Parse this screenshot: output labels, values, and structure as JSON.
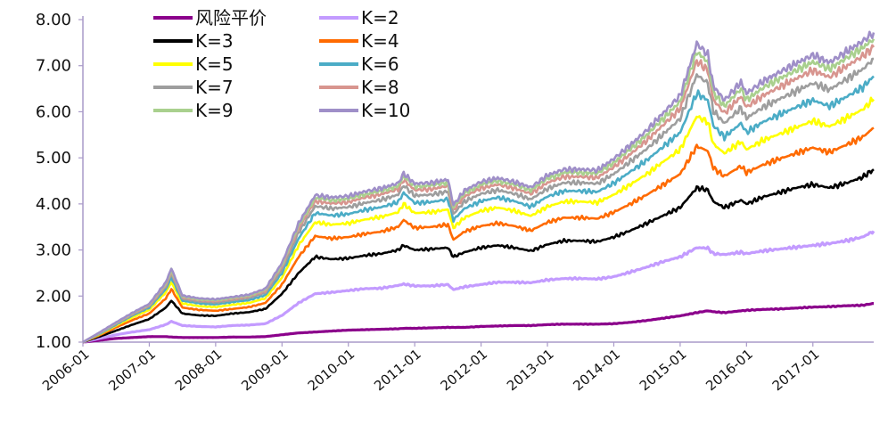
{
  "chart_data": {
    "type": "line",
    "title": "",
    "xlabel": "",
    "ylabel": "",
    "ylim": [
      1.0,
      8.0
    ],
    "y_ticks": [
      "1.00",
      "2.00",
      "3.00",
      "4.00",
      "5.00",
      "6.00",
      "7.00",
      "8.00"
    ],
    "x_ticks": [
      "2006-01",
      "2007-01",
      "2008-01",
      "2009-01",
      "2010-01",
      "2011-01",
      "2012-01",
      "2013-01",
      "2014-01",
      "2015-01",
      "2016-01",
      "2017-01"
    ],
    "x_range": [
      "2006-01",
      "2017-12"
    ],
    "grid": false,
    "legend_position": "top-left",
    "x": [
      "2006-01",
      "2006-04",
      "2006-07",
      "2006-10",
      "2007-01",
      "2007-04",
      "2007-05",
      "2007-07",
      "2007-10",
      "2008-01",
      "2008-04",
      "2008-07",
      "2008-10",
      "2009-01",
      "2009-04",
      "2009-07",
      "2009-10",
      "2010-01",
      "2010-04",
      "2010-07",
      "2010-10",
      "2010-11",
      "2011-01",
      "2011-04",
      "2011-07",
      "2011-08",
      "2011-10",
      "2012-01",
      "2012-04",
      "2012-07",
      "2012-10",
      "2013-01",
      "2013-04",
      "2013-07",
      "2013-10",
      "2014-01",
      "2014-04",
      "2014-07",
      "2014-10",
      "2015-01",
      "2015-04",
      "2015-06",
      "2015-07",
      "2015-09",
      "2015-12",
      "2016-01",
      "2016-04",
      "2016-07",
      "2016-10",
      "2017-01",
      "2017-04",
      "2017-07",
      "2017-10",
      "2017-12"
    ],
    "series": [
      {
        "name": "风险平价",
        "color": "#8b008b",
        "values": [
          1.0,
          1.04,
          1.08,
          1.1,
          1.12,
          1.12,
          1.11,
          1.1,
          1.1,
          1.1,
          1.11,
          1.11,
          1.12,
          1.16,
          1.2,
          1.22,
          1.24,
          1.26,
          1.27,
          1.28,
          1.29,
          1.3,
          1.3,
          1.31,
          1.32,
          1.32,
          1.32,
          1.34,
          1.35,
          1.36,
          1.36,
          1.38,
          1.39,
          1.39,
          1.39,
          1.4,
          1.43,
          1.47,
          1.52,
          1.57,
          1.64,
          1.68,
          1.66,
          1.64,
          1.68,
          1.69,
          1.71,
          1.72,
          1.74,
          1.76,
          1.77,
          1.79,
          1.8,
          1.84
        ]
      },
      {
        "name": "K=2",
        "color": "#c39bff",
        "values": [
          1.0,
          1.08,
          1.16,
          1.22,
          1.27,
          1.38,
          1.45,
          1.36,
          1.34,
          1.33,
          1.36,
          1.37,
          1.4,
          1.58,
          1.85,
          2.05,
          2.08,
          2.12,
          2.16,
          2.17,
          2.23,
          2.26,
          2.22,
          2.22,
          2.25,
          2.14,
          2.2,
          2.25,
          2.3,
          2.3,
          2.29,
          2.35,
          2.38,
          2.38,
          2.37,
          2.42,
          2.52,
          2.63,
          2.75,
          2.85,
          3.05,
          3.04,
          2.92,
          2.9,
          2.95,
          2.92,
          2.98,
          3.02,
          3.06,
          3.1,
          3.14,
          3.2,
          3.28,
          3.41
        ]
      },
      {
        "name": "K=3",
        "color": "#000000",
        "values": [
          1.0,
          1.12,
          1.25,
          1.38,
          1.5,
          1.75,
          1.9,
          1.62,
          1.58,
          1.57,
          1.62,
          1.65,
          1.72,
          2.05,
          2.5,
          2.85,
          2.8,
          2.82,
          2.88,
          2.92,
          3.0,
          3.1,
          3.0,
          3.02,
          3.05,
          2.85,
          2.95,
          3.05,
          3.1,
          3.05,
          2.98,
          3.12,
          3.2,
          3.2,
          3.18,
          3.28,
          3.42,
          3.58,
          3.75,
          3.92,
          4.35,
          4.3,
          4.05,
          3.92,
          4.08,
          4.0,
          4.15,
          4.25,
          4.35,
          4.42,
          4.35,
          4.45,
          4.58,
          4.75
        ]
      },
      {
        "name": "K=4",
        "color": "#ff6a00",
        "values": [
          1.0,
          1.15,
          1.32,
          1.48,
          1.62,
          1.95,
          2.15,
          1.75,
          1.7,
          1.68,
          1.72,
          1.76,
          1.85,
          2.25,
          2.85,
          3.3,
          3.25,
          3.28,
          3.35,
          3.4,
          3.5,
          3.65,
          3.48,
          3.5,
          3.55,
          3.22,
          3.4,
          3.52,
          3.58,
          3.52,
          3.42,
          3.6,
          3.7,
          3.7,
          3.68,
          3.82,
          4.0,
          4.2,
          4.42,
          4.65,
          5.25,
          5.15,
          4.78,
          4.6,
          4.82,
          4.68,
          4.85,
          4.98,
          5.1,
          5.22,
          5.12,
          5.28,
          5.45,
          5.65
        ]
      },
      {
        "name": "K=5",
        "color": "#ffff00",
        "values": [
          1.0,
          1.17,
          1.36,
          1.54,
          1.7,
          2.08,
          2.3,
          1.84,
          1.78,
          1.76,
          1.81,
          1.85,
          1.95,
          2.4,
          3.1,
          3.6,
          3.55,
          3.58,
          3.66,
          3.72,
          3.82,
          4.0,
          3.8,
          3.82,
          3.88,
          3.48,
          3.7,
          3.85,
          3.92,
          3.85,
          3.74,
          3.94,
          4.05,
          4.05,
          4.03,
          4.2,
          4.42,
          4.65,
          4.92,
          5.18,
          5.9,
          5.78,
          5.3,
          5.1,
          5.35,
          5.18,
          5.38,
          5.52,
          5.66,
          5.8,
          5.68,
          5.86,
          6.05,
          6.27
        ]
      },
      {
        "name": "K=6",
        "color": "#4bacc6",
        "values": [
          1.0,
          1.18,
          1.38,
          1.58,
          1.75,
          2.15,
          2.4,
          1.9,
          1.84,
          1.82,
          1.87,
          1.91,
          2.02,
          2.5,
          3.25,
          3.8,
          3.75,
          3.78,
          3.87,
          3.93,
          4.04,
          4.24,
          4.02,
          4.04,
          4.1,
          3.65,
          3.9,
          4.06,
          4.14,
          4.06,
          3.94,
          4.16,
          4.28,
          4.28,
          4.26,
          4.45,
          4.7,
          4.95,
          5.25,
          5.55,
          6.4,
          6.25,
          5.7,
          5.45,
          5.75,
          5.55,
          5.78,
          5.94,
          6.1,
          6.25,
          6.12,
          6.32,
          6.53,
          6.77
        ]
      },
      {
        "name": "K=7",
        "color": "#9e9e9e",
        "values": [
          1.0,
          1.19,
          1.4,
          1.6,
          1.78,
          2.2,
          2.48,
          1.94,
          1.88,
          1.86,
          1.91,
          1.96,
          2.07,
          2.58,
          3.38,
          3.95,
          3.9,
          3.93,
          4.02,
          4.09,
          4.2,
          4.4,
          4.18,
          4.2,
          4.27,
          3.78,
          4.05,
          4.22,
          4.3,
          4.22,
          4.1,
          4.33,
          4.46,
          4.46,
          4.44,
          4.65,
          4.92,
          5.2,
          5.52,
          5.85,
          6.8,
          6.62,
          6.02,
          5.75,
          6.08,
          5.86,
          6.1,
          6.28,
          6.45,
          6.62,
          6.48,
          6.7,
          6.92,
          7.15
        ]
      },
      {
        "name": "K=8",
        "color": "#d8958f",
        "values": [
          1.0,
          1.2,
          1.41,
          1.62,
          1.8,
          2.24,
          2.53,
          1.97,
          1.91,
          1.89,
          1.94,
          1.99,
          2.11,
          2.64,
          3.47,
          4.06,
          4.01,
          4.04,
          4.14,
          4.21,
          4.32,
          4.52,
          4.3,
          4.32,
          4.39,
          3.87,
          4.16,
          4.34,
          4.42,
          4.34,
          4.22,
          4.46,
          4.59,
          4.59,
          4.57,
          4.8,
          5.08,
          5.38,
          5.72,
          6.07,
          7.1,
          6.9,
          6.26,
          5.97,
          6.33,
          6.1,
          6.35,
          6.54,
          6.72,
          6.9,
          6.75,
          6.98,
          7.21,
          7.4
        ]
      },
      {
        "name": "K=9",
        "color": "#a9d08e",
        "values": [
          1.0,
          1.2,
          1.42,
          1.63,
          1.82,
          2.27,
          2.57,
          1.99,
          1.93,
          1.91,
          1.96,
          2.01,
          2.14,
          2.68,
          3.53,
          4.13,
          4.08,
          4.11,
          4.21,
          4.28,
          4.39,
          4.6,
          4.38,
          4.4,
          4.47,
          3.93,
          4.23,
          4.42,
          4.5,
          4.42,
          4.3,
          4.55,
          4.68,
          4.68,
          4.66,
          4.9,
          5.19,
          5.5,
          5.86,
          6.22,
          7.3,
          7.08,
          6.42,
          6.12,
          6.5,
          6.26,
          6.52,
          6.72,
          6.9,
          7.08,
          6.93,
          7.16,
          7.39,
          7.58
        ]
      },
      {
        "name": "K=10",
        "color": "#9f8fc8",
        "values": [
          1.0,
          1.21,
          1.43,
          1.64,
          1.83,
          2.3,
          2.6,
          2.01,
          1.95,
          1.93,
          1.98,
          2.03,
          2.16,
          2.72,
          3.58,
          4.19,
          4.14,
          4.17,
          4.27,
          4.34,
          4.45,
          4.66,
          4.44,
          4.46,
          4.53,
          3.98,
          4.29,
          4.48,
          4.56,
          4.48,
          4.36,
          4.62,
          4.75,
          4.75,
          4.73,
          4.98,
          5.28,
          5.6,
          5.98,
          6.35,
          7.48,
          7.24,
          6.56,
          6.25,
          6.64,
          6.4,
          6.66,
          6.86,
          7.05,
          7.23,
          7.07,
          7.3,
          7.53,
          7.72
        ]
      }
    ]
  }
}
